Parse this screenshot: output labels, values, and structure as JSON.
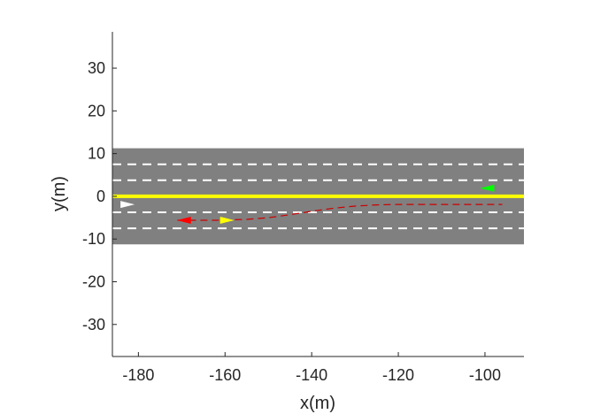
{
  "chart_data": {
    "type": "scatter",
    "title": "",
    "xlabel": "x(m)",
    "ylabel": "y(m)",
    "xlim": [
      -186,
      -91
    ],
    "ylim": [
      -37.5,
      38.5
    ],
    "xticks": [
      -180,
      -160,
      -140,
      -120,
      -100
    ],
    "yticks": [
      -30,
      -20,
      -10,
      0,
      10,
      20,
      30
    ],
    "xtick_labels": [
      "-180",
      "-160",
      "-140",
      "-120",
      "-100"
    ],
    "ytick_labels": [
      "-30",
      "-20",
      "-10",
      "0",
      "10",
      "20",
      "30"
    ],
    "grid": false,
    "road": {
      "x_start": -186,
      "x_end": -91,
      "y_bottom": -11.25,
      "y_top": 11.25,
      "center_line_y": 0,
      "lane_lines_y": [
        7.5,
        3.75,
        -3.75,
        -7.5
      ],
      "road_color": "#808080",
      "center_line_color": "#ffff00",
      "lane_line_color": "#ffffff"
    },
    "vehicles": [
      {
        "color": "#ffffff",
        "x": -182.5,
        "y": -1.9,
        "direction": "right"
      },
      {
        "color": "#ff0000",
        "x": -169.5,
        "y": -5.6,
        "direction": "left"
      },
      {
        "color": "#ffff00",
        "x": -159.5,
        "y": -5.6,
        "direction": "right"
      },
      {
        "color": "#00ff00",
        "x": -99.5,
        "y": 1.9,
        "direction": "left"
      }
    ],
    "trajectory": {
      "color": "#cc0000",
      "style": "dashed",
      "x": [
        -171,
        -162,
        -155,
        -150,
        -145,
        -140,
        -135,
        -130,
        -125,
        -120,
        -115,
        -110,
        -105,
        -100,
        -96
      ],
      "y": [
        -5.6,
        -5.6,
        -5.4,
        -5.0,
        -4.3,
        -3.5,
        -2.8,
        -2.3,
        -2.0,
        -1.9,
        -1.9,
        -1.9,
        -1.9,
        -1.9,
        -1.9
      ]
    }
  }
}
